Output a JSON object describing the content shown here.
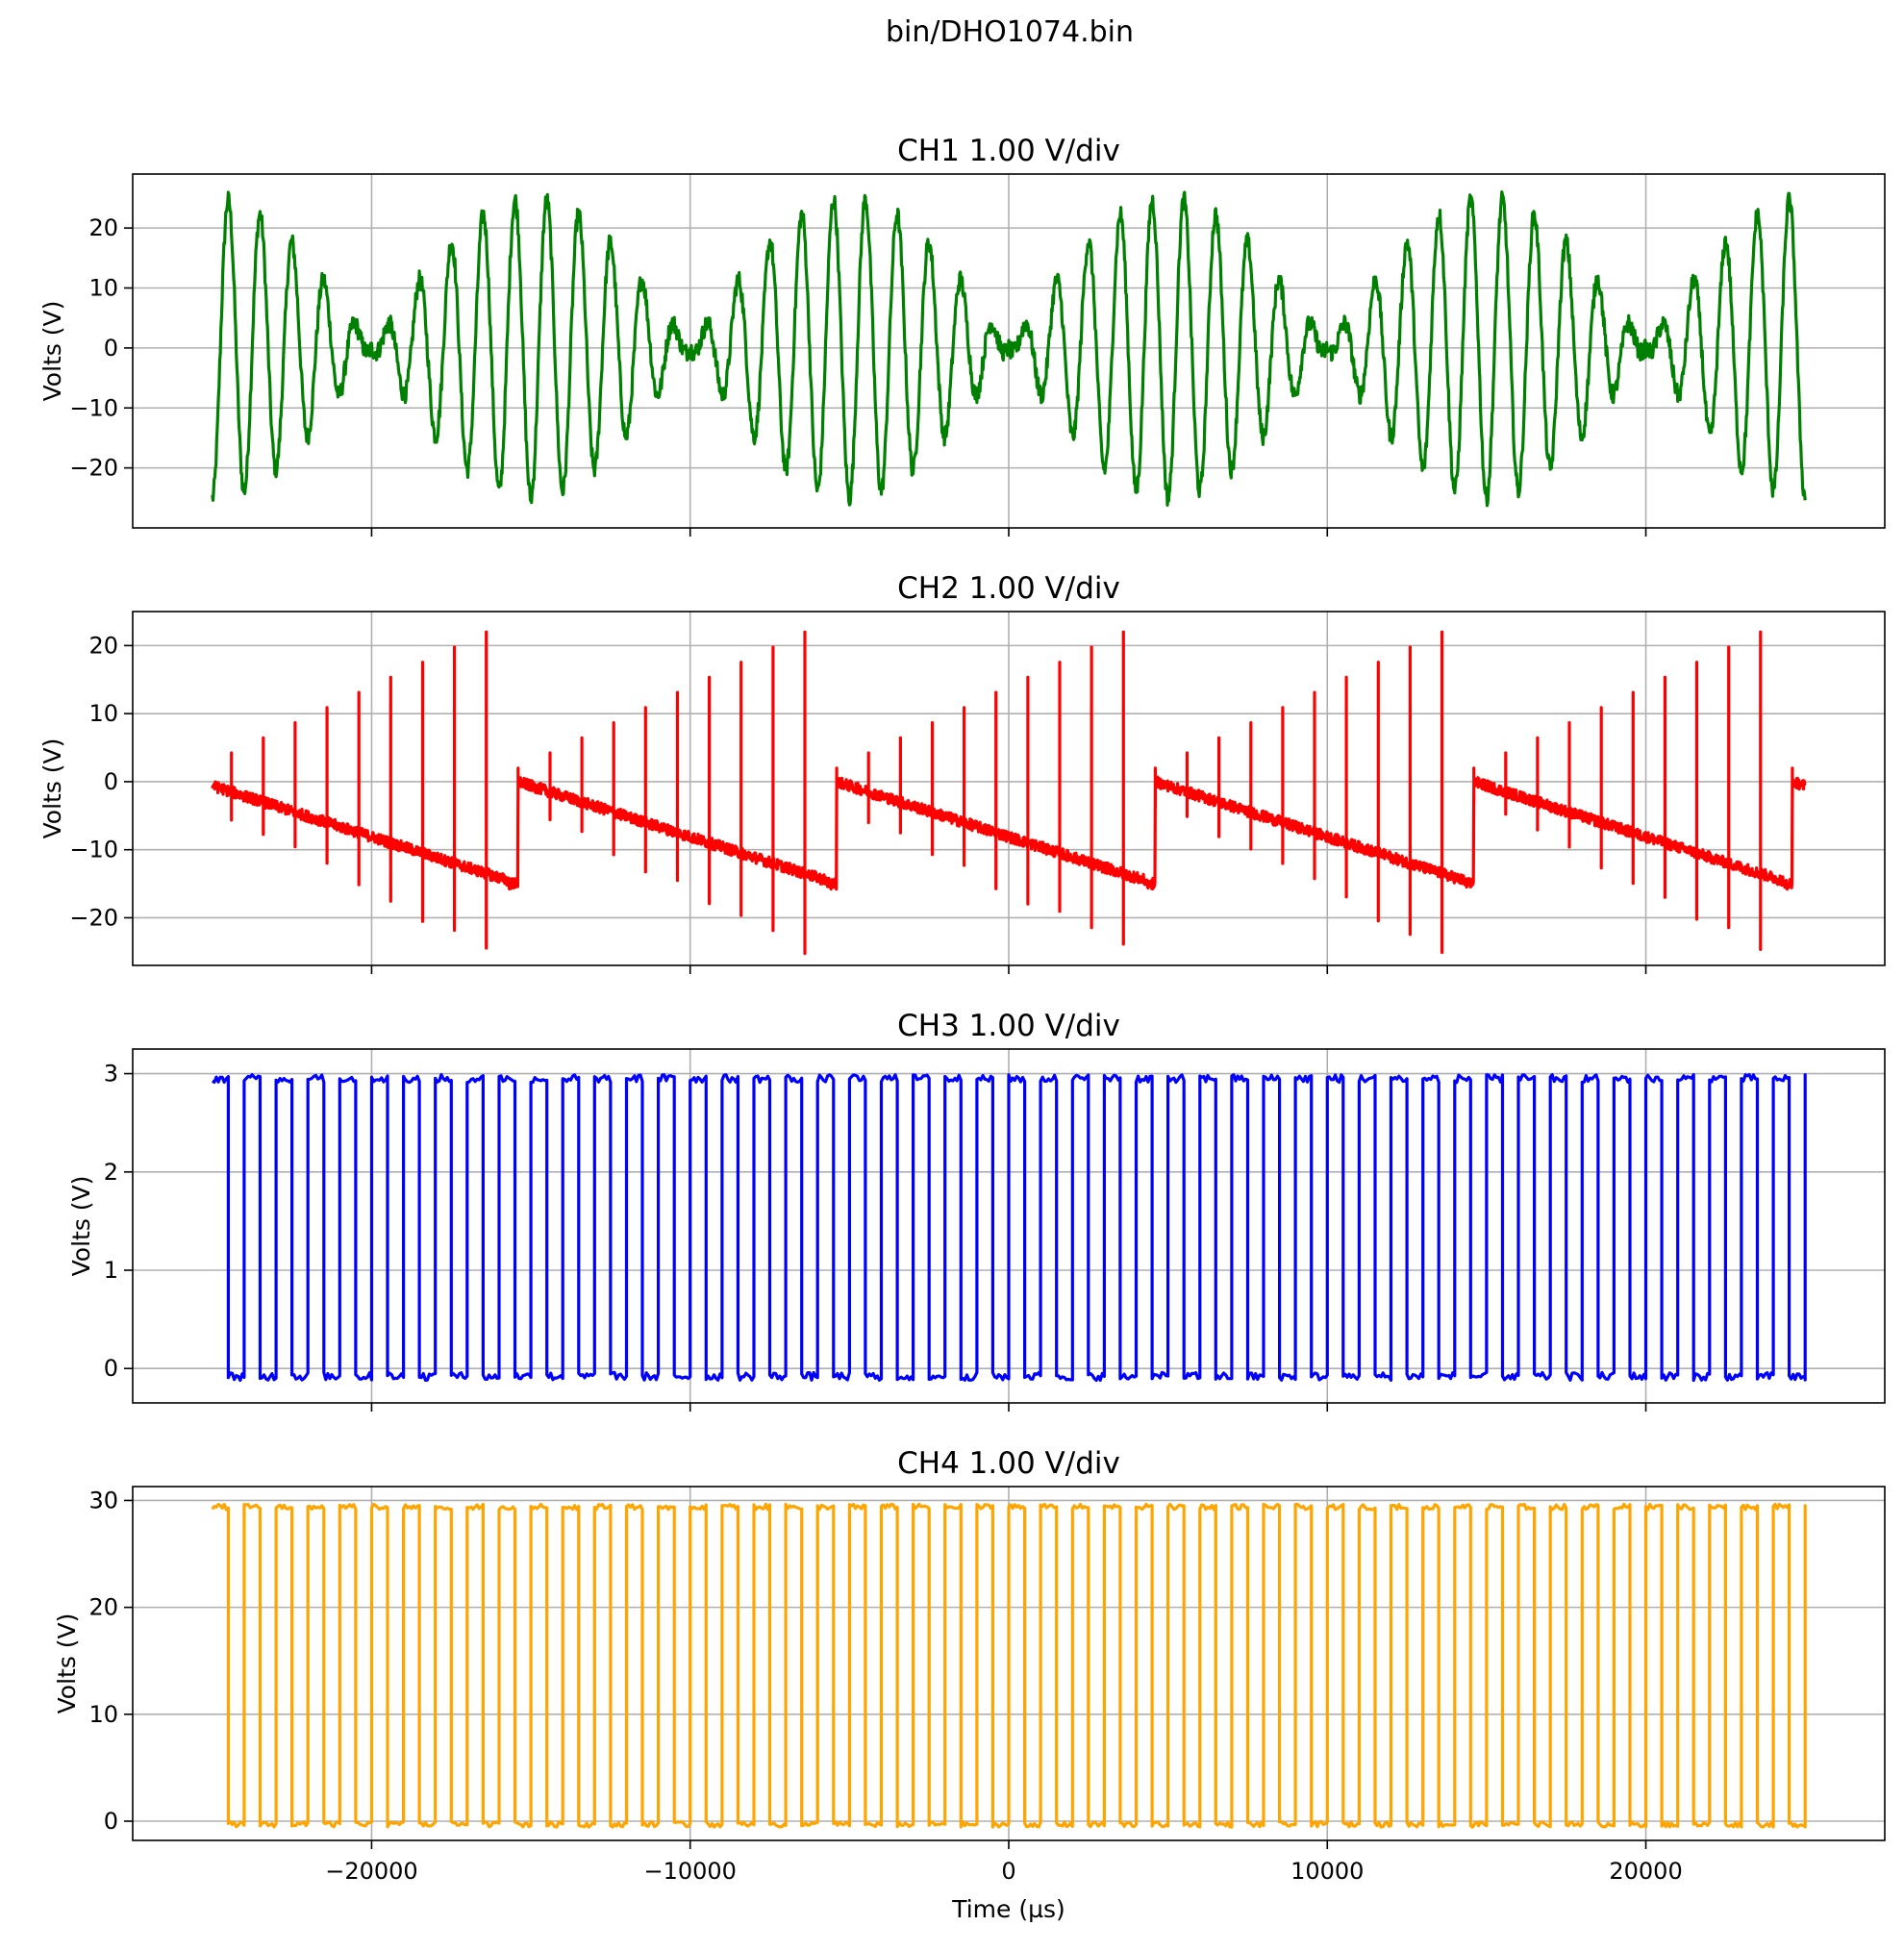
{
  "figure_title": "bin/DHO1074.bin",
  "chart_data": [
    {
      "type": "line",
      "title": "CH1  1.00 V/div",
      "xlabel": "",
      "ylabel": "Volts (V)",
      "color": "#008000",
      "grid": true,
      "xlim": [
        -27500,
        27500
      ],
      "ylim": [
        -30,
        29
      ],
      "xticks": [
        -20000,
        -10000,
        0,
        10000,
        20000
      ],
      "xticklabels": [
        "",
        "",
        "",
        "",
        ""
      ],
      "yticks": [
        -20,
        -10,
        0,
        10,
        20
      ],
      "yticklabels": [
        "−20",
        "−10",
        "0",
        "10",
        "20"
      ],
      "signal": {
        "kind": "beat",
        "t_start": -25000,
        "t_end": 25000,
        "carrier_period_us": 1000,
        "envelope_period_us": 10000,
        "amplitude": 25,
        "noise": 1.5
      },
      "series": [
        {
          "values": []
        }
      ]
    },
    {
      "type": "line",
      "title": "CH2  1.00 V/div",
      "xlabel": "",
      "ylabel": "Volts (V)",
      "color": "#ff0000",
      "grid": true,
      "xlim": [
        -27500,
        27500
      ],
      "ylim": [
        -27,
        25
      ],
      "xticks": [
        -20000,
        -10000,
        0,
        10000,
        20000
      ],
      "xticklabels": [
        "",
        "",
        "",
        "",
        ""
      ],
      "yticks": [
        -20,
        -10,
        0,
        10,
        20
      ],
      "yticklabels": [
        "−20",
        "−10",
        "0",
        "10",
        "20"
      ],
      "signal": {
        "kind": "sawtooth_spikes",
        "t_start": -25000,
        "t_end": 25000,
        "period_us": 10000,
        "spike_period_us": 1000,
        "ramp_start": 0,
        "ramp_end": -15,
        "spike_peak_min": 2,
        "spike_peak_max": 22,
        "noise": 0.8
      },
      "series": [
        {
          "values": []
        }
      ]
    },
    {
      "type": "line",
      "title": "CH3  1.00 V/div",
      "xlabel": "",
      "ylabel": "Volts (V)",
      "color": "#0000ff",
      "grid": true,
      "xlim": [
        -27500,
        27500
      ],
      "ylim": [
        -0.35,
        3.25
      ],
      "xticks": [
        -20000,
        -10000,
        0,
        10000,
        20000
      ],
      "xticklabels": [
        "",
        "",
        "",
        "",
        ""
      ],
      "yticks": [
        0,
        1,
        2,
        3
      ],
      "yticklabels": [
        "0",
        "1",
        "2",
        "3"
      ],
      "signal": {
        "kind": "square",
        "t_start": -25000,
        "t_end": 25000,
        "period_us": 1000,
        "high": 2.95,
        "low": -0.08,
        "noise": 0.04
      },
      "series": [
        {
          "values": []
        }
      ]
    },
    {
      "type": "line",
      "title": "CH4  1.00 V/div",
      "xlabel": "Time (µs)",
      "ylabel": "Volts (V)",
      "color": "#ffa500",
      "grid": true,
      "xlim": [
        -27500,
        27500
      ],
      "ylim": [
        -1.8,
        31.3
      ],
      "xticks": [
        -20000,
        -10000,
        0,
        10000,
        20000
      ],
      "xticklabels": [
        "−20000",
        "−10000",
        "0",
        "10000",
        "20000"
      ],
      "yticks": [
        0,
        10,
        20,
        30
      ],
      "yticklabels": [
        "0",
        "10",
        "20",
        "30"
      ],
      "signal": {
        "kind": "square",
        "t_start": -25000,
        "t_end": 25000,
        "period_us": 1000,
        "high": 29.4,
        "low": -0.3,
        "noise": 0.25
      },
      "series": [
        {
          "values": []
        }
      ]
    }
  ]
}
